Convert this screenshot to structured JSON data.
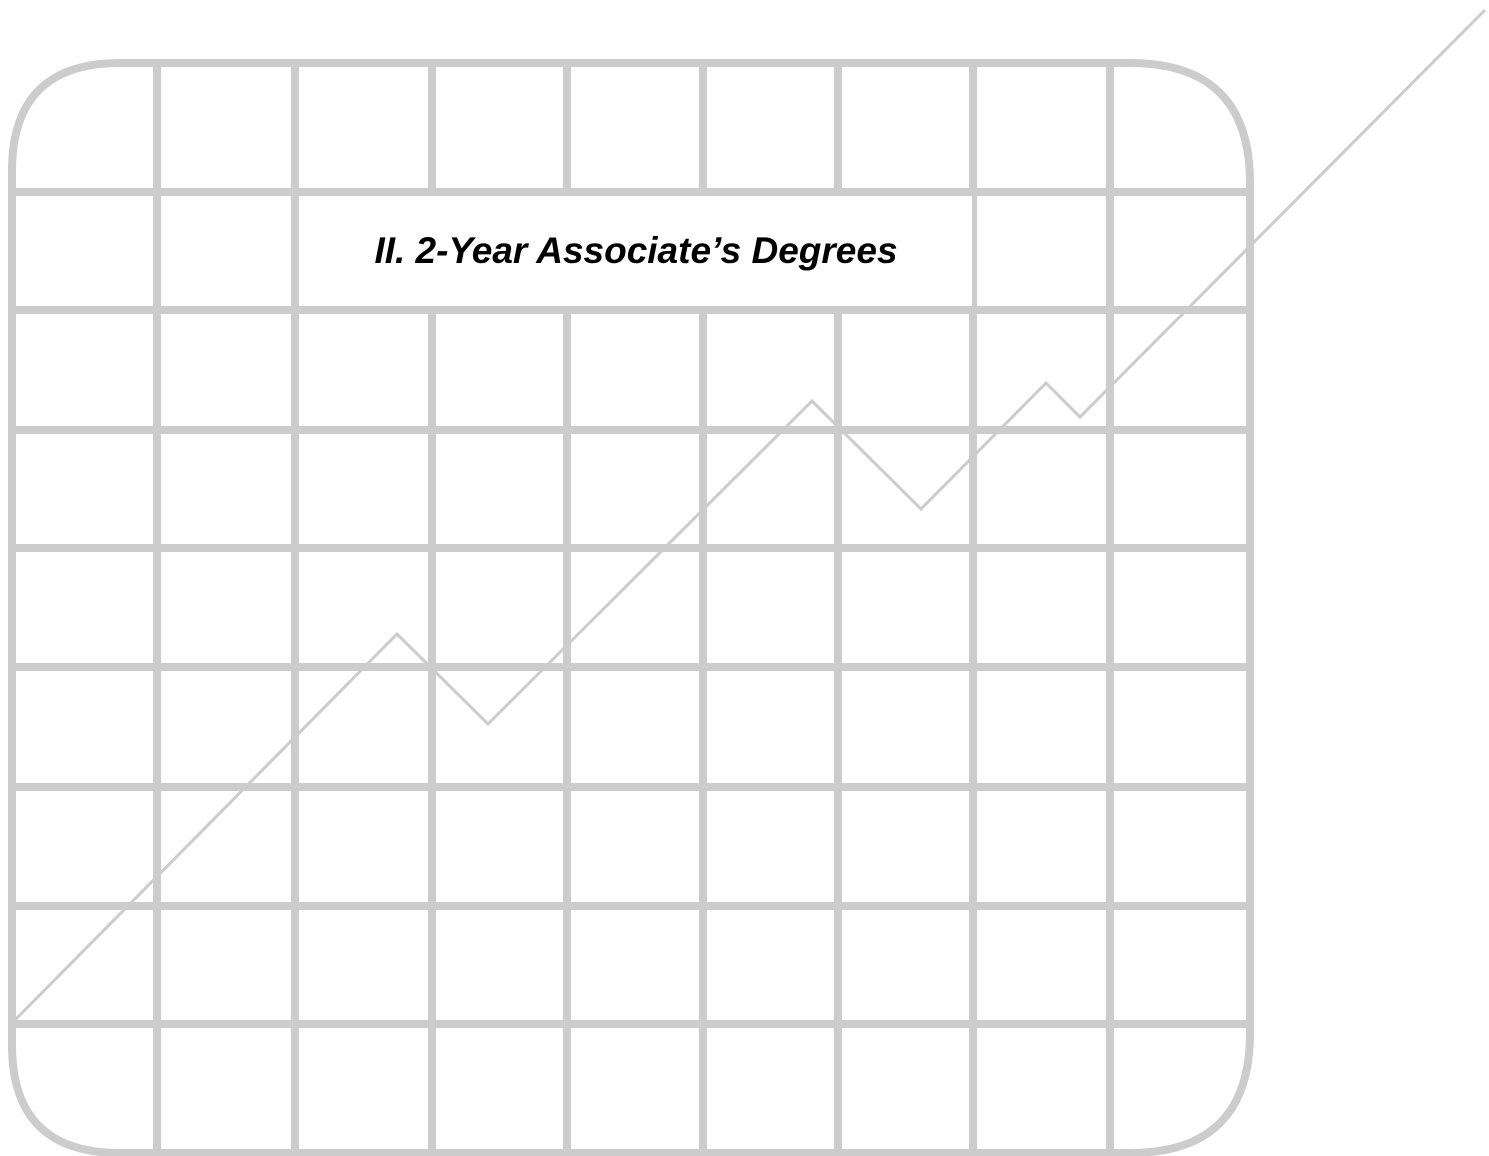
{
  "section_title": "II. 2-Year Associate’s Degrees",
  "decoration": {
    "name": "grid-with-rising-line",
    "grid_color": "#cccccc",
    "line_color": "#cccccc"
  }
}
